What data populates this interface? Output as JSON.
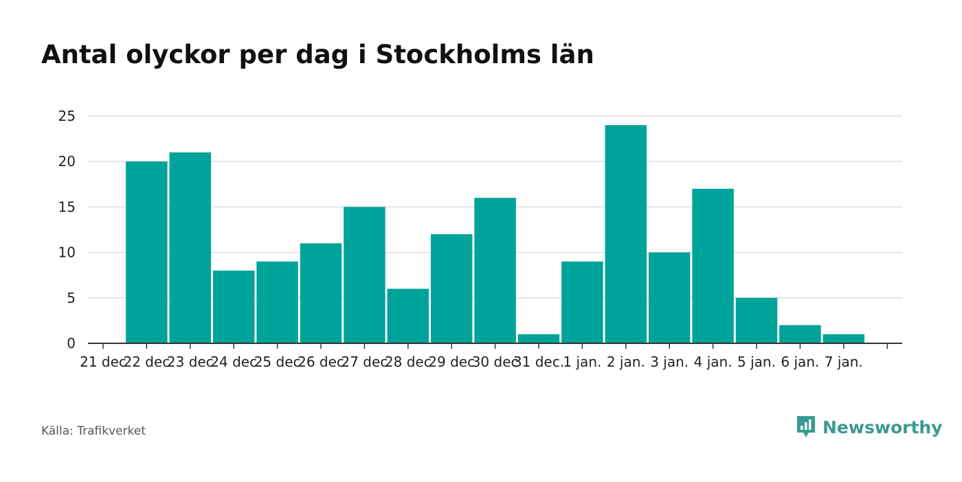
{
  "chart_data": {
    "type": "bar",
    "title": "Antal olyckor per dag i Stockholms län",
    "categories": [
      "21 dec",
      "22 dec",
      "23 dec",
      "24 dec",
      "25 dec",
      "26 dec",
      "27 dec",
      "28 dec",
      "29 dec",
      "30 dec",
      "31 dec.",
      "1 jan.",
      "2 jan.",
      "3 jan.",
      "4 jan.",
      "5 jan.",
      "6 jan.",
      "7 jan."
    ],
    "values": [
      null,
      20,
      21,
      8,
      9,
      11,
      15,
      6,
      12,
      16,
      1,
      9,
      24,
      10,
      17,
      5,
      2,
      1
    ],
    "ylim": [
      0,
      25
    ],
    "yticks": [
      0,
      5,
      10,
      15,
      20,
      25
    ],
    "xlabel": "",
    "ylabel": "",
    "grid": true,
    "colors": {
      "bar": "#00a39a",
      "grid": "#dddddd",
      "axis": "#333333",
      "brand": "#3a9a93"
    }
  },
  "footer": {
    "source": "Källa: Trafikverket",
    "brand": "Newsworthy",
    "brand_icon": "newsworthy-chart-icon"
  }
}
